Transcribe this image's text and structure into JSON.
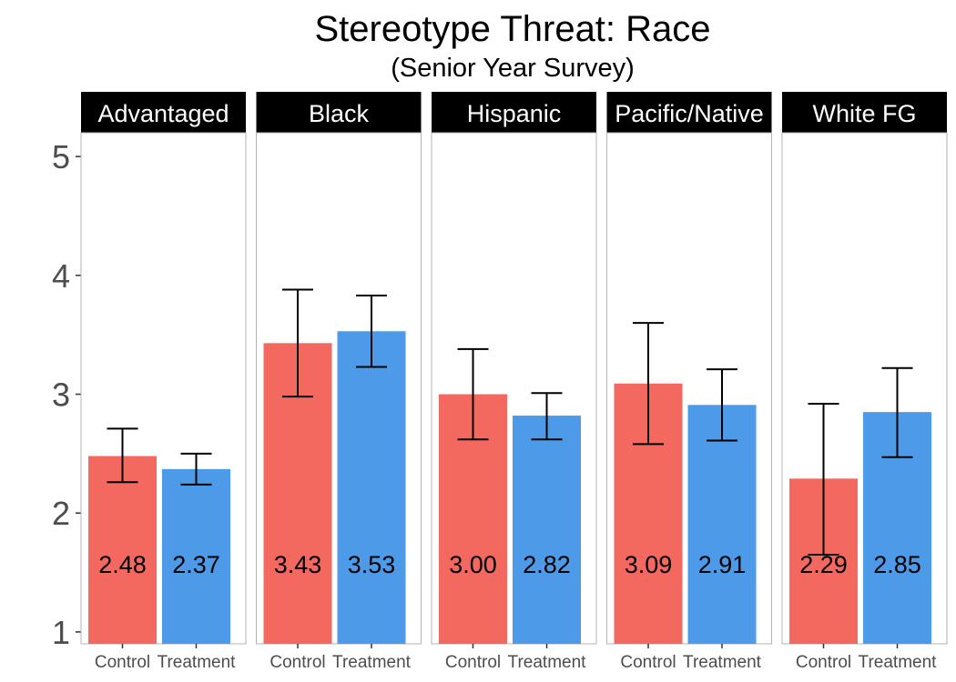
{
  "chart_data": {
    "type": "bar",
    "title": "Stereotype Threat: Race",
    "subtitle": "(Senior Year Survey)",
    "xlabel": "",
    "ylabel": "",
    "ylim": [
      0.9,
      5.2
    ],
    "yticks": [
      1,
      2,
      3,
      4,
      5
    ],
    "grid": false,
    "legend": "none",
    "colors": {
      "Control": "#f4695f",
      "Treatment": "#4d9be8"
    },
    "categories": [
      "Control",
      "Treatment"
    ],
    "panels": [
      {
        "name": "Advantaged",
        "bars": [
          {
            "group": "Control",
            "value": 2.48,
            "label": "2.48",
            "err_low": 2.26,
            "err_high": 2.71
          },
          {
            "group": "Treatment",
            "value": 2.37,
            "label": "2.37",
            "err_low": 2.24,
            "err_high": 2.5
          }
        ]
      },
      {
        "name": "Black",
        "bars": [
          {
            "group": "Control",
            "value": 3.43,
            "label": "3.43",
            "err_low": 2.98,
            "err_high": 3.88
          },
          {
            "group": "Treatment",
            "value": 3.53,
            "label": "3.53",
            "err_low": 3.23,
            "err_high": 3.83
          }
        ]
      },
      {
        "name": "Hispanic",
        "bars": [
          {
            "group": "Control",
            "value": 3.0,
            "label": "3.00",
            "err_low": 2.62,
            "err_high": 3.38
          },
          {
            "group": "Treatment",
            "value": 2.82,
            "label": "2.82",
            "err_low": 2.62,
            "err_high": 3.01
          }
        ]
      },
      {
        "name": "Pacific/Native",
        "bars": [
          {
            "group": "Control",
            "value": 3.09,
            "label": "3.09",
            "err_low": 2.58,
            "err_high": 3.6
          },
          {
            "group": "Treatment",
            "value": 2.91,
            "label": "2.91",
            "err_low": 2.61,
            "err_high": 3.21
          }
        ]
      },
      {
        "name": "White FG",
        "bars": [
          {
            "group": "Control",
            "value": 2.29,
            "label": "2.29",
            "err_low": 1.65,
            "err_high": 2.92
          },
          {
            "group": "Treatment",
            "value": 2.85,
            "label": "2.85",
            "err_low": 2.47,
            "err_high": 3.22
          }
        ]
      }
    ]
  }
}
